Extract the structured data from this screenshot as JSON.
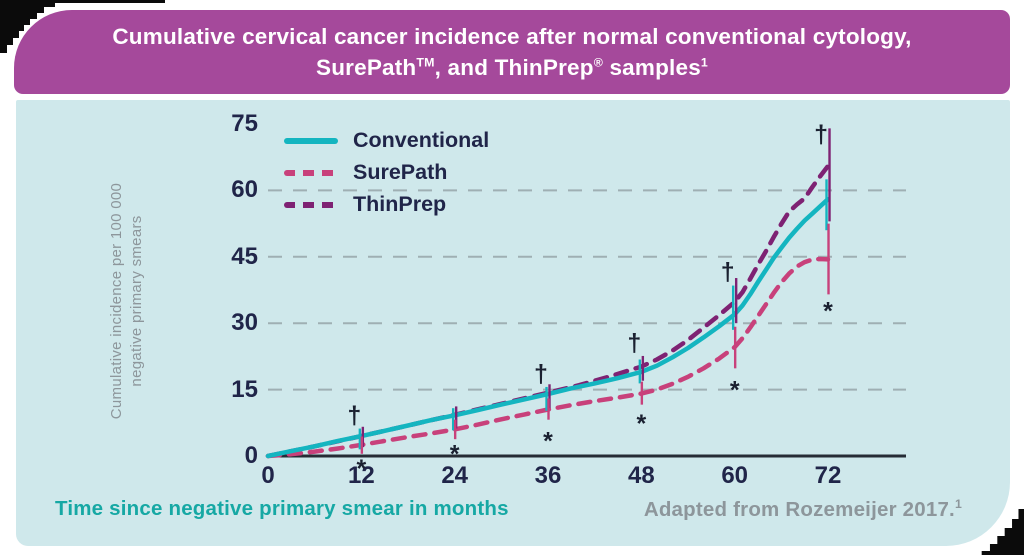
{
  "colors": {
    "banner_bg": "#a5499b",
    "card_bg": "#cfe8eb",
    "navy_text": "#202549",
    "gray_text": "#8d969b",
    "teal": "#14b5c0",
    "pink": "#c8417b",
    "purple": "#7e2273",
    "axis": "#262c35",
    "grid": "#9fafb3",
    "annotation": "#1a2030",
    "corner_black": "#0b0b0b"
  },
  "header": {
    "line1": "Cumulative cervical cancer incidence after normal conventional cytology,",
    "line2_pre": "SurePath",
    "line2_sup1": "TM",
    "line2_mid": ", and ThinPrep",
    "line2_sup2": "®",
    "line2_post": " samples",
    "line2_sup3": "1"
  },
  "footer": {
    "x_axis_title": "Time since negative primary smear in months",
    "source_note": "Adapted from Rozemeijer 2017.",
    "source_sup": "1"
  },
  "y_axis_title": {
    "line1": "Cumulative incidence per 100 000",
    "line2": "negative primary smears"
  },
  "legend": {
    "items": [
      {
        "label": "Conventional",
        "style": "solid",
        "color": "#14b5c0"
      },
      {
        "label": "SurePath",
        "style": "dashed",
        "color": "#c8417b"
      },
      {
        "label": "ThinPrep",
        "style": "dashed",
        "color": "#7e2273"
      }
    ]
  },
  "chart_data": {
    "type": "line",
    "title": "Cumulative cervical cancer incidence after normal conventional cytology, SurePath and ThinPrep samples",
    "xlabel": "Time since negative primary smear in months",
    "ylabel": "Cumulative incidence per 100 000 negative primary smears",
    "xlim": [
      0,
      72
    ],
    "ylim": [
      0,
      75
    ],
    "xticks": [
      0,
      12,
      24,
      36,
      48,
      60,
      72
    ],
    "yticks": [
      0,
      15,
      30,
      45,
      60,
      75
    ],
    "gridlines_y": [
      15,
      30,
      45,
      60
    ],
    "grid_style": "dashed",
    "legend_position": "inside-top-left",
    "series": [
      {
        "name": "ThinPrep",
        "style": "dashed",
        "color": "#7e2273",
        "points": [
          [
            0,
            0
          ],
          [
            6,
            2.2
          ],
          [
            12,
            4.5
          ],
          [
            18,
            6.9
          ],
          [
            24,
            9.3
          ],
          [
            30,
            11.8
          ],
          [
            36,
            14.3
          ],
          [
            40,
            16
          ],
          [
            44,
            18
          ],
          [
            48,
            20.2
          ],
          [
            50,
            21.8
          ],
          [
            52,
            23.8
          ],
          [
            54,
            26.2
          ],
          [
            56,
            29
          ],
          [
            58,
            31.8
          ],
          [
            60,
            34.8
          ],
          [
            61,
            37
          ],
          [
            62,
            40
          ],
          [
            63,
            43.2
          ],
          [
            64,
            46.2
          ],
          [
            65,
            49.4
          ],
          [
            66,
            52.4
          ],
          [
            67,
            55.2
          ],
          [
            68,
            56.8
          ],
          [
            69,
            58.2
          ],
          [
            70,
            60.8
          ],
          [
            71,
            63.2
          ],
          [
            72,
            65.5
          ]
        ]
      },
      {
        "name": "SurePath",
        "style": "dashed",
        "color": "#c8417b",
        "points": [
          [
            0,
            0
          ],
          [
            3,
            0.4
          ],
          [
            6,
            1
          ],
          [
            9,
            1.7
          ],
          [
            12,
            2.5
          ],
          [
            15,
            3.4
          ],
          [
            18,
            4.3
          ],
          [
            21,
            5.1
          ],
          [
            24,
            6
          ],
          [
            27,
            7.1
          ],
          [
            30,
            8.3
          ],
          [
            33,
            9.4
          ],
          [
            36,
            10.5
          ],
          [
            39,
            11.5
          ],
          [
            42,
            12.4
          ],
          [
            45,
            13.2
          ],
          [
            48,
            14.1
          ],
          [
            50,
            15
          ],
          [
            52,
            16.3
          ],
          [
            54,
            17.9
          ],
          [
            56,
            19.8
          ],
          [
            58,
            22
          ],
          [
            60,
            24.6
          ],
          [
            61,
            26.6
          ],
          [
            62,
            29
          ],
          [
            63,
            31.6
          ],
          [
            64,
            34.2
          ],
          [
            65,
            36.8
          ],
          [
            66,
            39.2
          ],
          [
            67,
            41.2
          ],
          [
            68,
            42.8
          ],
          [
            69,
            43.8
          ],
          [
            70,
            44.4
          ],
          [
            71,
            44.5
          ],
          [
            72,
            44.4
          ]
        ]
      },
      {
        "name": "Conventional",
        "style": "solid",
        "color": "#14b5c0",
        "points": [
          [
            0,
            0
          ],
          [
            3,
            1.1
          ],
          [
            6,
            2.2
          ],
          [
            9,
            3.4
          ],
          [
            12,
            4.5
          ],
          [
            15,
            5.7
          ],
          [
            18,
            6.9
          ],
          [
            21,
            8.1
          ],
          [
            24,
            9.2
          ],
          [
            27,
            10.4
          ],
          [
            30,
            11.6
          ],
          [
            33,
            12.8
          ],
          [
            36,
            14
          ],
          [
            39,
            15.3
          ],
          [
            42,
            16.4
          ],
          [
            45,
            17.6
          ],
          [
            48,
            19
          ],
          [
            50,
            20.4
          ],
          [
            52,
            22.3
          ],
          [
            54,
            24.4
          ],
          [
            56,
            26.8
          ],
          [
            58,
            29.3
          ],
          [
            60,
            32
          ],
          [
            61,
            34
          ],
          [
            62,
            36.5
          ],
          [
            63,
            39.3
          ],
          [
            64,
            42
          ],
          [
            65,
            44.7
          ],
          [
            66,
            47
          ],
          [
            67,
            49.3
          ],
          [
            68,
            51.3
          ],
          [
            69,
            53.2
          ],
          [
            70,
            54.8
          ],
          [
            71,
            56.4
          ],
          [
            72,
            58
          ]
        ]
      }
    ],
    "error_bars": [
      {
        "x": 12,
        "series": "Conventional",
        "from": 1.5,
        "to": 6.2
      },
      {
        "x": 12,
        "series": "ThinPrep",
        "from": 2,
        "to": 6.6
      },
      {
        "x": 12,
        "series": "SurePath",
        "from": 0.5,
        "to": 4.4
      },
      {
        "x": 24,
        "series": "Conventional",
        "from": 5.8,
        "to": 10.8
      },
      {
        "x": 24,
        "series": "ThinPrep",
        "from": 6.2,
        "to": 11.2
      },
      {
        "x": 24,
        "series": "SurePath",
        "from": 3.8,
        "to": 8.2
      },
      {
        "x": 36,
        "series": "Conventional",
        "from": 10.2,
        "to": 15.6
      },
      {
        "x": 36,
        "series": "ThinPrep",
        "from": 10.8,
        "to": 16.2
      },
      {
        "x": 36,
        "series": "SurePath",
        "from": 8.2,
        "to": 13
      },
      {
        "x": 48,
        "series": "Conventional",
        "from": 16.4,
        "to": 21.8
      },
      {
        "x": 48,
        "series": "ThinPrep",
        "from": 17,
        "to": 22.6
      },
      {
        "x": 48,
        "series": "SurePath",
        "from": 11.6,
        "to": 16.8
      },
      {
        "x": 60,
        "series": "Conventional",
        "from": 28.5,
        "to": 38.5
      },
      {
        "x": 60,
        "series": "ThinPrep",
        "from": 30,
        "to": 40.2
      },
      {
        "x": 60,
        "series": "SurePath",
        "from": 19.8,
        "to": 29.2
      },
      {
        "x": 72,
        "series": "Conventional",
        "from": 51,
        "to": 62.5
      },
      {
        "x": 72,
        "series": "ThinPrep",
        "from": 53,
        "to": 74
      },
      {
        "x": 72,
        "series": "SurePath",
        "from": 36.5,
        "to": 52.5
      }
    ],
    "annotations": {
      "daggers": [
        {
          "x": 12,
          "y": 9.4
        },
        {
          "x": 36,
          "y": 18.7
        },
        {
          "x": 48,
          "y": 25.8
        },
        {
          "x": 60,
          "y": 41.8
        },
        {
          "x": 72,
          "y": 72.8
        }
      ],
      "asterisks": [
        {
          "x": 12,
          "y": -1.3
        },
        {
          "x": 24,
          "y": 1.9
        },
        {
          "x": 36,
          "y": 4.9
        },
        {
          "x": 48,
          "y": 8.8
        },
        {
          "x": 60,
          "y": 16.4
        },
        {
          "x": 72,
          "y": 34.2
        }
      ]
    }
  }
}
